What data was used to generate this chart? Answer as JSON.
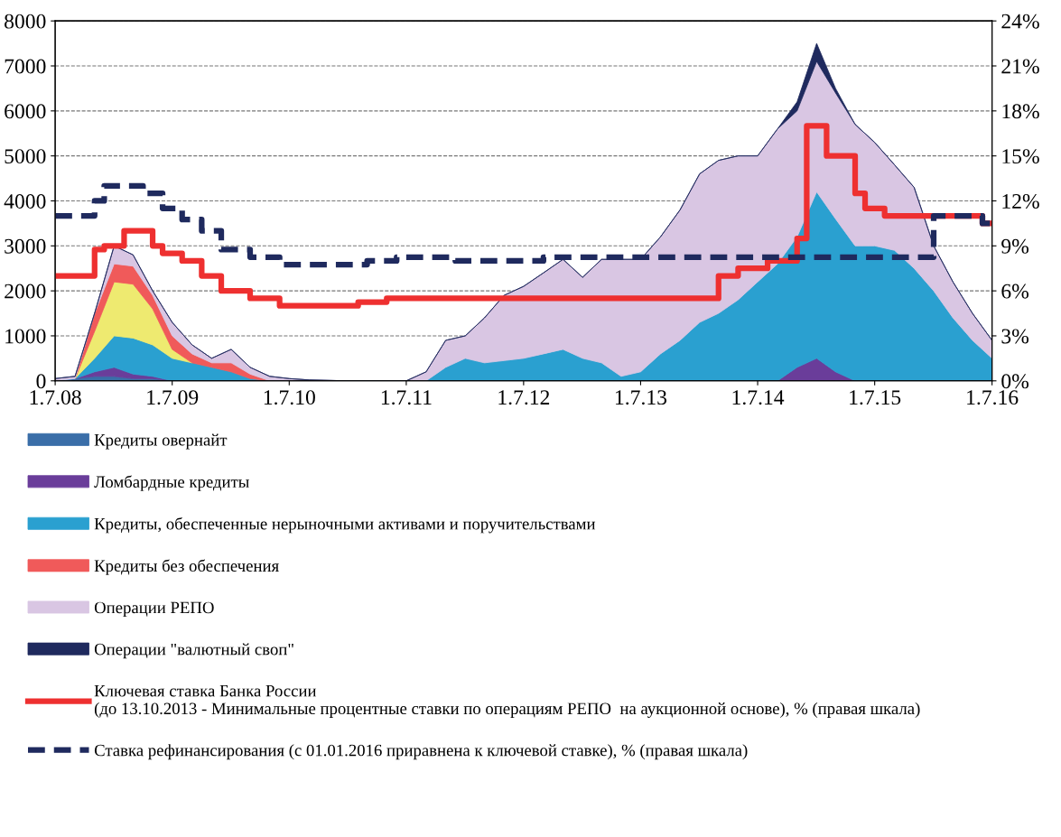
{
  "chart_data": {
    "type": "area",
    "stacked": true,
    "x": [
      "2008-07",
      "2008-09",
      "2008-11",
      "2009-01",
      "2009-03",
      "2009-05",
      "2009-07",
      "2009-09",
      "2009-11",
      "2010-01",
      "2010-03",
      "2010-05",
      "2010-07",
      "2010-09",
      "2010-11",
      "2011-01",
      "2011-03",
      "2011-05",
      "2011-07",
      "2011-09",
      "2011-11",
      "2012-01",
      "2012-03",
      "2012-05",
      "2012-07",
      "2012-09",
      "2012-11",
      "2013-01",
      "2013-03",
      "2013-05",
      "2013-07",
      "2013-09",
      "2013-11",
      "2014-01",
      "2014-03",
      "2014-05",
      "2014-07",
      "2014-09",
      "2014-11",
      "2015-01",
      "2015-03",
      "2015-05",
      "2015-07",
      "2015-09",
      "2015-11",
      "2016-01",
      "2016-03",
      "2016-05",
      "2016-07"
    ],
    "series": [
      {
        "name": "Кредиты овернайт",
        "color": "#3a6ea8",
        "values": [
          0,
          50,
          100,
          100,
          50,
          50,
          0,
          0,
          0,
          0,
          0,
          0,
          0,
          0,
          0,
          0,
          0,
          0,
          0,
          0,
          0,
          0,
          0,
          0,
          0,
          0,
          0,
          0,
          0,
          0,
          0,
          0,
          0,
          0,
          0,
          0,
          0,
          0,
          0,
          0,
          0,
          0,
          0,
          0,
          0,
          0,
          0,
          0,
          0
        ]
      },
      {
        "name": "Ломбардные кредиты",
        "color": "#6a3d9a",
        "values": [
          0,
          0,
          100,
          200,
          100,
          50,
          0,
          0,
          0,
          0,
          0,
          0,
          0,
          0,
          0,
          0,
          0,
          0,
          0,
          0,
          0,
          0,
          0,
          0,
          0,
          0,
          0,
          0,
          0,
          0,
          0,
          0,
          0,
          0,
          0,
          0,
          0,
          0,
          300,
          500,
          200,
          0,
          0,
          0,
          0,
          0,
          0,
          0,
          0
        ]
      },
      {
        "name": "Кредиты, обеспеченные нерыночными активами и поручительствами",
        "color": "#2aa0d0",
        "values": [
          0,
          0,
          300,
          700,
          800,
          700,
          500,
          400,
          300,
          200,
          50,
          0,
          0,
          0,
          0,
          0,
          0,
          0,
          0,
          0,
          300,
          500,
          400,
          450,
          500,
          600,
          700,
          500,
          400,
          100,
          200,
          600,
          900,
          1300,
          1500,
          1800,
          2200,
          2600,
          2900,
          3700,
          3400,
          3000,
          3000,
          2900,
          2500,
          2000,
          1400,
          900,
          500
        ]
      },
      {
        "color": "#eeea70",
        "values": [
          null,
          0,
          600,
          1200,
          1200,
          800,
          200,
          0,
          null,
          null,
          null,
          null,
          null,
          null,
          null,
          null,
          null,
          null,
          null,
          null,
          null,
          null,
          null,
          null,
          null,
          null,
          null,
          null,
          null,
          null,
          null,
          null,
          null,
          null,
          null,
          null,
          null,
          null,
          null,
          null,
          null,
          null,
          null,
          null,
          null,
          null,
          null,
          null,
          null
        ]
      },
      {
        "name": "Кредиты без обеспечения",
        "color": "#f05a5a",
        "values": [
          null,
          0,
          400,
          400,
          400,
          300,
          300,
          200,
          100,
          200,
          100,
          0,
          null,
          null,
          null,
          null,
          null,
          null,
          null,
          null,
          null,
          null,
          null,
          null,
          null,
          null,
          null,
          null,
          null,
          null,
          null,
          null,
          null,
          null,
          null,
          null,
          null,
          null,
          null,
          null,
          null,
          null,
          null,
          null,
          null,
          null,
          null,
          null,
          null
        ]
      },
      {
        "name": "Операции РЕПО",
        "color": "#d9c6e3",
        "values": [
          50,
          50,
          0,
          400,
          250,
          100,
          300,
          200,
          100,
          300,
          150,
          100,
          50,
          20,
          10,
          0,
          0,
          0,
          0,
          200,
          600,
          500,
          1000,
          1450,
          1600,
          1800,
          2000,
          1800,
          2300,
          2600,
          2500,
          2600,
          2900,
          3300,
          3400,
          3200,
          2800,
          3000,
          2800,
          2900,
          2800,
          2700,
          2300,
          1900,
          1800,
          1000,
          800,
          600,
          400
        ]
      },
      {
        "name": "Операции \"валютный своп\"",
        "color": "#1f2a5e",
        "values": [
          0,
          0,
          0,
          0,
          0,
          0,
          0,
          0,
          0,
          0,
          0,
          0,
          0,
          0,
          0,
          0,
          0,
          0,
          0,
          0,
          0,
          0,
          0,
          0,
          0,
          0,
          0,
          0,
          0,
          0,
          0,
          0,
          0,
          0,
          0,
          0,
          0,
          0,
          200,
          400,
          100,
          0,
          0,
          0,
          0,
          0,
          0,
          0,
          0
        ]
      },
      {
        "name": "Ключевая ставка Банка России\n(до 13.10.2013 - Минимальные процентные ставки по операциям РЕПО  на аукционной основе), % (правая шкала)",
        "type": "step",
        "axis": "y2",
        "color": "#ee3030",
        "line_style": "solid",
        "x": [
          "2008-07",
          "2008-10",
          "2008-11",
          "2008-12",
          "2009-02",
          "2009-05",
          "2009-06",
          "2009-08",
          "2009-10",
          "2009-12",
          "2010-03",
          "2010-06",
          "2011-02",
          "2011-05",
          "2014-03",
          "2014-05",
          "2014-08",
          "2014-11",
          "2014-12",
          "2015-02",
          "2015-05",
          "2015-06",
          "2015-08",
          "2016-06",
          "2016-07"
        ],
        "values": [
          7,
          7,
          8.75,
          9,
          10,
          9,
          8.5,
          8,
          7,
          6,
          5.5,
          5,
          5.25,
          5.5,
          7,
          7.5,
          8,
          9.5,
          17,
          15,
          12.5,
          11.5,
          11,
          10.5,
          10.5
        ]
      },
      {
        "name": "Ставка рефинансирования (с 01.01.2016 приравнена к ключевой ставке), % (правая шкала)",
        "type": "step",
        "axis": "y2",
        "color": "#1f2a5e",
        "line_style": "dashed",
        "x": [
          "2008-07",
          "2008-11",
          "2008-12",
          "2009-04",
          "2009-06",
          "2009-08",
          "2009-10",
          "2009-12",
          "2010-03",
          "2010-06",
          "2011-03",
          "2011-06",
          "2011-12",
          "2012-09",
          "2016-01",
          "2016-06",
          "2016-07"
        ],
        "values": [
          11,
          12,
          13,
          12.5,
          11.5,
          10.75,
          10,
          8.75,
          8.25,
          7.75,
          8,
          8.25,
          8,
          8.25,
          11,
          10.5,
          10.5
        ]
      }
    ],
    "xlim": [
      "2008-07-01",
      "2016-07-01"
    ],
    "xticks": [
      {
        "value": "2008-07-01",
        "label": "1.7.08"
      },
      {
        "value": "2009-07-01",
        "label": "1.7.09"
      },
      {
        "value": "2010-07-01",
        "label": "1.7.10"
      },
      {
        "value": "2011-07-01",
        "label": "1.7.11"
      },
      {
        "value": "2012-07-01",
        "label": "1.7.12"
      },
      {
        "value": "2013-07-01",
        "label": "1.7.13"
      },
      {
        "value": "2014-07-01",
        "label": "1.7.14"
      },
      {
        "value": "2015-07-01",
        "label": "1.7.15"
      },
      {
        "value": "2016-07-01",
        "label": "1.7.16"
      }
    ],
    "ylim": [
      0,
      8000
    ],
    "yticks": [
      0,
      1000,
      2000,
      3000,
      4000,
      5000,
      6000,
      7000,
      8000
    ],
    "y2lim": [
      0,
      24
    ],
    "y2ticks": [
      {
        "value": 0,
        "label": "0%"
      },
      {
        "value": 3,
        "label": "3%"
      },
      {
        "value": 6,
        "label": "6%"
      },
      {
        "value": 9,
        "label": "9%"
      },
      {
        "value": 12,
        "label": "12%"
      },
      {
        "value": 15,
        "label": "15%"
      },
      {
        "value": 18,
        "label": "18%"
      },
      {
        "value": 21,
        "label": "21%"
      },
      {
        "value": 24,
        "label": "24%"
      }
    ],
    "grid": "y",
    "legend": "bottom"
  }
}
